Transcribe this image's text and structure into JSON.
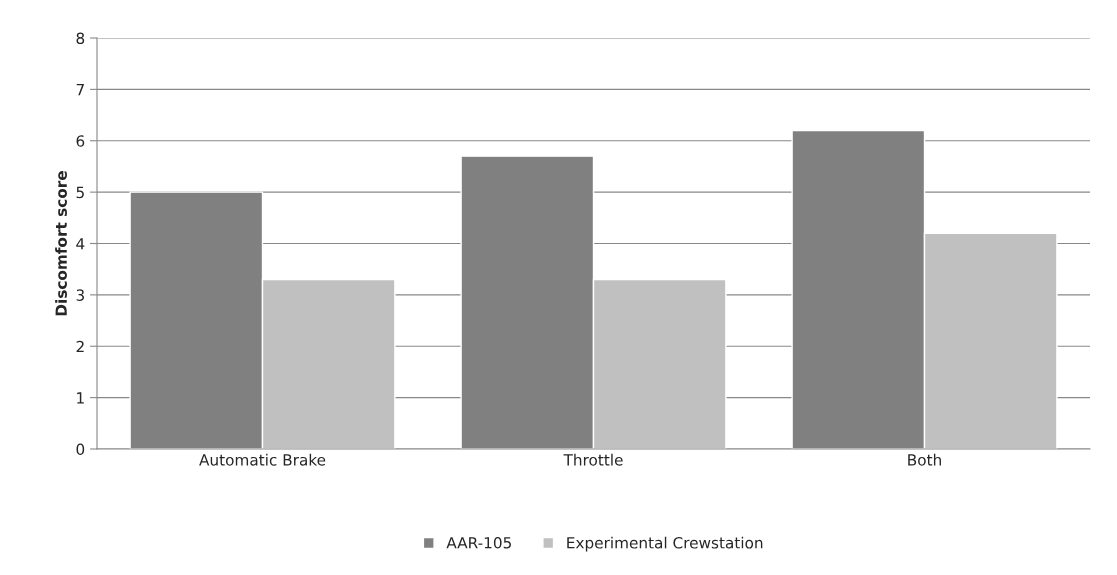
{
  "chart_data": {
    "type": "bar",
    "ylabel": "Discomfort score",
    "categories": [
      "Automatic Brake",
      "Throttle",
      "Both"
    ],
    "series": [
      {
        "name": "AAR-105",
        "color": "#808080",
        "values": [
          5.0,
          5.7,
          6.2
        ]
      },
      {
        "name": "Experimental Crewstation",
        "color": "#c0c0c0",
        "values": [
          3.3,
          3.3,
          4.2
        ]
      }
    ],
    "ylim": [
      0,
      8
    ],
    "yticks": [
      0,
      1,
      2,
      3,
      4,
      5,
      6,
      7,
      8
    ],
    "grid": "y",
    "legend": "bottom"
  }
}
